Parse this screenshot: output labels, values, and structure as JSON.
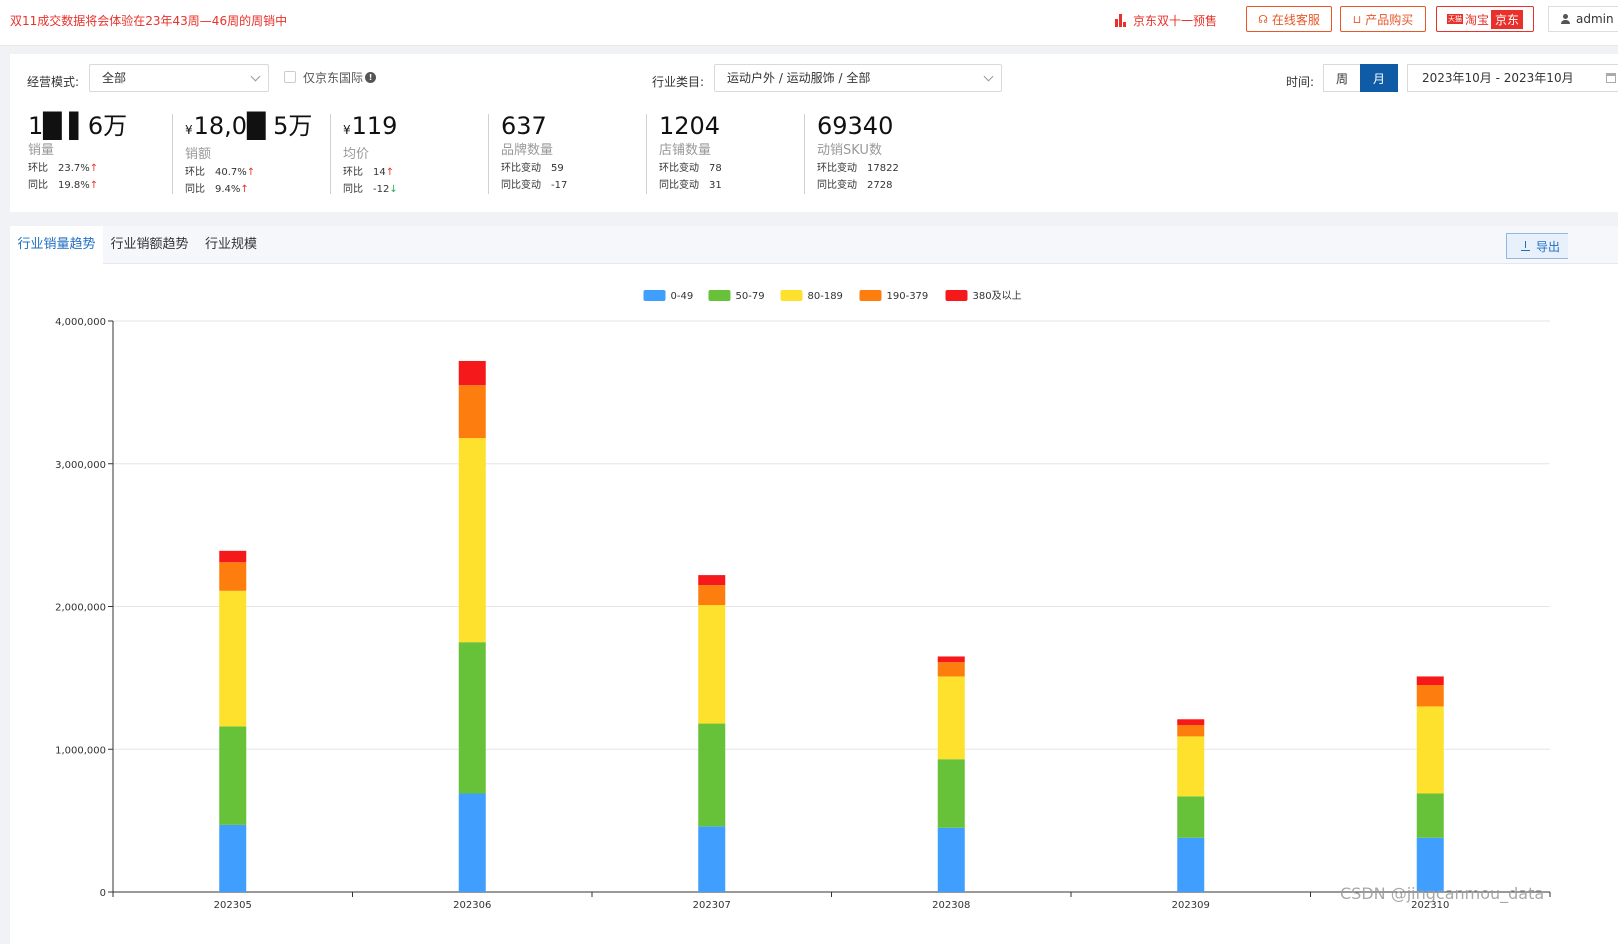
{
  "topbar": {
    "notice": "双11成交数据将会体验在23年43周—46周的周销中",
    "jd_presale": "京东双十一预售",
    "service_label": "在线客服",
    "buy_label": "产品购买",
    "channels": {
      "tmall_tag": "天猫",
      "taobao": "淘宝",
      "jd": "京东"
    },
    "user": "admin"
  },
  "filters": {
    "mode_label": "经营模式:",
    "mode_value": "全部",
    "jd_intl_label": "仅京东国际",
    "industry_label": "行业类目:",
    "industry_value": "运动户外 / 运动服饰 / 全部",
    "time_label": "时间:",
    "period_week": "周",
    "period_month": "月",
    "period_selected": "月",
    "date_range": "2023年10月 - 2023年10月"
  },
  "stats": [
    {
      "prefix": "",
      "value": "1█ ▌6万",
      "name": "销量",
      "rows": [
        {
          "k": "环比",
          "v": "23.7%",
          "dir": "up"
        },
        {
          "k": "同比",
          "v": "19.8%",
          "dir": "up"
        }
      ]
    },
    {
      "prefix": "¥",
      "value": "18,0█ 5万",
      "name": "销额",
      "rows": [
        {
          "k": "环比",
          "v": "40.7%",
          "dir": "up"
        },
        {
          "k": "同比",
          "v": "9.4%",
          "dir": "up"
        }
      ]
    },
    {
      "prefix": "¥",
      "value": "119",
      "name": "均价",
      "rows": [
        {
          "k": "环比",
          "v": "14",
          "dir": "up"
        },
        {
          "k": "同比",
          "v": "-12",
          "dir": "down"
        }
      ]
    },
    {
      "prefix": "",
      "value": "637",
      "name": "品牌数量",
      "rows": [
        {
          "k": "环比变动",
          "v": "59",
          "dir": ""
        },
        {
          "k": "同比变动",
          "v": "-17",
          "dir": ""
        }
      ]
    },
    {
      "prefix": "",
      "value": "1204",
      "name": "店铺数量",
      "rows": [
        {
          "k": "环比变动",
          "v": "78",
          "dir": ""
        },
        {
          "k": "同比变动",
          "v": "31",
          "dir": ""
        }
      ]
    },
    {
      "prefix": "",
      "value": "69340",
      "name": "动销SKU数",
      "rows": [
        {
          "k": "环比变动",
          "v": "17822",
          "dir": ""
        },
        {
          "k": "同比变动",
          "v": "2728",
          "dir": ""
        }
      ]
    }
  ],
  "tabs": [
    "行业销量趋势",
    "行业销额趋势",
    "行业规模"
  ],
  "active_tab": 0,
  "export_label": "导出",
  "chart_data": {
    "type": "bar",
    "stacked": true,
    "categories": [
      "202305",
      "202306",
      "202307",
      "202308",
      "202309",
      "202310"
    ],
    "series": [
      {
        "name": "0-49",
        "color": "#409eff",
        "values": [
          470000,
          690000,
          460000,
          450000,
          380000,
          380000
        ]
      },
      {
        "name": "50-79",
        "color": "#67c23a",
        "values": [
          690000,
          1060000,
          720000,
          480000,
          290000,
          310000
        ]
      },
      {
        "name": "80-189",
        "color": "#fde12d",
        "values": [
          950000,
          1430000,
          830000,
          580000,
          420000,
          610000
        ]
      },
      {
        "name": "190-379",
        "color": "#fd7e0e",
        "values": [
          200000,
          370000,
          140000,
          100000,
          80000,
          150000
        ]
      },
      {
        "name": "380及以上",
        "color": "#f5191b",
        "values": [
          80000,
          170000,
          70000,
          40000,
          40000,
          60000
        ]
      }
    ],
    "ylim": [
      0,
      4000000
    ],
    "yticks": [
      "0",
      "1,000,000",
      "2,000,000",
      "3,000,000",
      "4,000,000"
    ],
    "legend_position": "top-center",
    "grid": true
  },
  "watermark": "CSDN @jingcanmou_data"
}
